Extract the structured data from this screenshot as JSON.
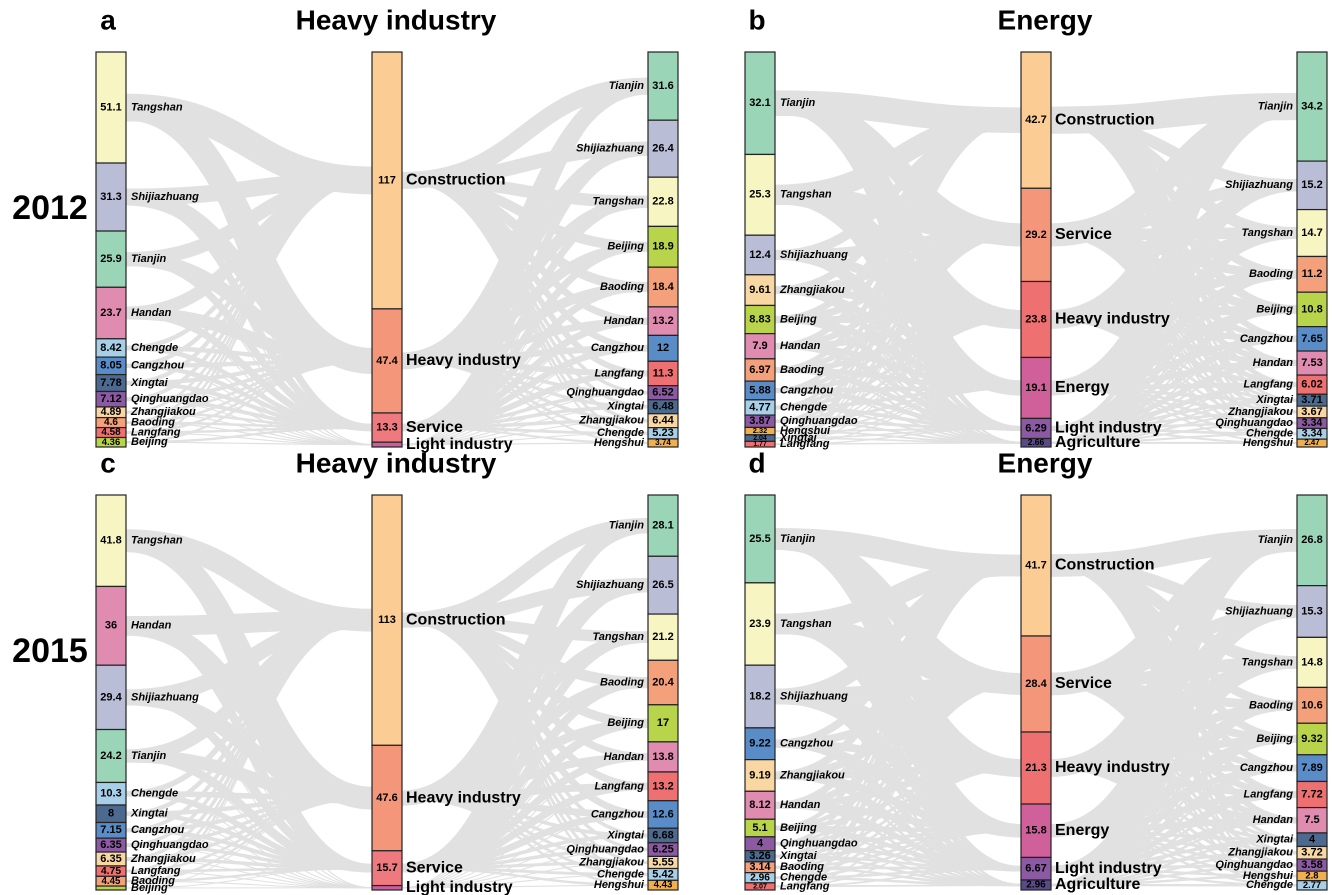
{
  "chart_data": [
    {
      "type": "sankey",
      "panel": "a",
      "title": "Heavy industry",
      "row_label": "2012",
      "left": [
        {
          "name": "Tangshan",
          "value": 51.1,
          "color": "#f7f6c2"
        },
        {
          "name": "Shijiazhuang",
          "value": 31.3,
          "color": "#babdd6"
        },
        {
          "name": "Tianjin",
          "value": 25.9,
          "color": "#9bd5b7"
        },
        {
          "name": "Handan",
          "value": 23.7,
          "color": "#df8cb0"
        },
        {
          "name": "Chengde",
          "value": 8.42,
          "color": "#a7cfe8"
        },
        {
          "name": "Cangzhou",
          "value": 8.05,
          "color": "#5a8cc8"
        },
        {
          "name": "Xingtai",
          "value": 7.78,
          "color": "#4c6a90"
        },
        {
          "name": "Qinghuangdao",
          "value": 7.12,
          "color": "#8b5aa2"
        },
        {
          "name": "Zhangjiakou",
          "value": 4.89,
          "color": "#f8d7a2"
        },
        {
          "name": "Baoding",
          "value": 4.6,
          "color": "#f4a07a"
        },
        {
          "name": "Langfang",
          "value": 4.58,
          "color": "#ee7070"
        },
        {
          "name": "Beijing",
          "value": 4.36,
          "color": "#b8d44a"
        }
      ],
      "middle": [
        {
          "name": "Construction",
          "value": 117,
          "color": "#fbcc94"
        },
        {
          "name": "Heavy industry",
          "value": 47.4,
          "color": "#f4967a"
        },
        {
          "name": "Service",
          "value": 13.3,
          "color": "#ee7a80"
        },
        {
          "name": "Light industry",
          "value": 2.2,
          "color": "#c8609e"
        }
      ],
      "right": [
        {
          "name": "Tianjin",
          "value": 31.6,
          "color": "#9bd5b7"
        },
        {
          "name": "Shijiazhuang",
          "value": 26.4,
          "color": "#babdd6"
        },
        {
          "name": "Tangshan",
          "value": 22.8,
          "color": "#f7f6c2"
        },
        {
          "name": "Beijing",
          "value": 18.9,
          "color": "#b8d44a"
        },
        {
          "name": "Baoding",
          "value": 18.4,
          "color": "#f4a07a"
        },
        {
          "name": "Handan",
          "value": 13.2,
          "color": "#df8cb0"
        },
        {
          "name": "Cangzhou",
          "value": 12,
          "color": "#5a8cc8"
        },
        {
          "name": "Langfang",
          "value": 11.3,
          "color": "#ee7070"
        },
        {
          "name": "Qinghuangdao",
          "value": 6.52,
          "color": "#8b5aa2"
        },
        {
          "name": "Xingtai",
          "value": 6.48,
          "color": "#4c6a90"
        },
        {
          "name": "Zhangjiakou",
          "value": 6.44,
          "color": "#f8d7a2"
        },
        {
          "name": "Chengde",
          "value": 5.23,
          "color": "#a7cfe8"
        },
        {
          "name": "Hengshui",
          "value": 3.74,
          "color": "#f0b050"
        }
      ]
    },
    {
      "type": "sankey",
      "panel": "b",
      "title": "Energy",
      "left": [
        {
          "name": "Tianjin",
          "value": 32.1,
          "color": "#9bd5b7"
        },
        {
          "name": "Tangshan",
          "value": 25.3,
          "color": "#f7f6c2"
        },
        {
          "name": "Shijiazhuang",
          "value": 12.4,
          "color": "#babdd6"
        },
        {
          "name": "Zhangjiakou",
          "value": 9.61,
          "color": "#f8d7a2"
        },
        {
          "name": "Beijing",
          "value": 8.83,
          "color": "#b8d44a"
        },
        {
          "name": "Handan",
          "value": 7.9,
          "color": "#df8cb0"
        },
        {
          "name": "Baoding",
          "value": 6.97,
          "color": "#f4a07a"
        },
        {
          "name": "Cangzhou",
          "value": 5.88,
          "color": "#5a8cc8"
        },
        {
          "name": "Chengde",
          "value": 4.77,
          "color": "#a7cfe8"
        },
        {
          "name": "Qinghuangdao",
          "value": 3.87,
          "color": "#8b5aa2"
        },
        {
          "name": "Hengshui",
          "value": 2.32,
          "color": "#f0b050"
        },
        {
          "name": "Xingtai",
          "value": 2.04,
          "color": "#4c6a90"
        },
        {
          "name": "Langfang",
          "value": 1.77,
          "color": "#ee7070"
        }
      ],
      "middle": [
        {
          "name": "Construction",
          "value": 42.7,
          "color": "#fbcc94"
        },
        {
          "name": "Service",
          "value": 29.2,
          "color": "#f4967a"
        },
        {
          "name": "Heavy industry",
          "value": 23.8,
          "color": "#ee7070"
        },
        {
          "name": "Energy",
          "value": 19.1,
          "color": "#d0609a"
        },
        {
          "name": "Light industry",
          "value": 6.29,
          "color": "#8b5aa2"
        },
        {
          "name": "Agriculture",
          "value": 2.66,
          "color": "#5a4a8a"
        }
      ],
      "right": [
        {
          "name": "Tianjin",
          "value": 34.2,
          "color": "#9bd5b7"
        },
        {
          "name": "Shijiazhuang",
          "value": 15.2,
          "color": "#babdd6"
        },
        {
          "name": "Tangshan",
          "value": 14.7,
          "color": "#f7f6c2"
        },
        {
          "name": "Baoding",
          "value": 11.2,
          "color": "#f4a07a"
        },
        {
          "name": "Beijing",
          "value": 10.8,
          "color": "#b8d44a"
        },
        {
          "name": "Cangzhou",
          "value": 7.65,
          "color": "#5a8cc8"
        },
        {
          "name": "Handan",
          "value": 7.53,
          "color": "#df8cb0"
        },
        {
          "name": "Langfang",
          "value": 6.02,
          "color": "#ee7070"
        },
        {
          "name": "Xingtai",
          "value": 3.71,
          "color": "#4c6a90"
        },
        {
          "name": "Zhangjiakou",
          "value": 3.67,
          "color": "#f8d7a2"
        },
        {
          "name": "Qinghuangdao",
          "value": 3.34,
          "color": "#8b5aa2"
        },
        {
          "name": "Chengde",
          "value": 3.34,
          "color": "#a7cfe8"
        },
        {
          "name": "Hengshui",
          "value": 2.47,
          "color": "#f0b050"
        }
      ]
    },
    {
      "type": "sankey",
      "panel": "c",
      "title": "Heavy industry",
      "row_label": "2015",
      "left": [
        {
          "name": "Tangshan",
          "value": 41.8,
          "color": "#f7f6c2"
        },
        {
          "name": "Handan",
          "value": 36,
          "color": "#df8cb0"
        },
        {
          "name": "Shijiazhuang",
          "value": 29.4,
          "color": "#babdd6"
        },
        {
          "name": "Tianjin",
          "value": 24.2,
          "color": "#9bd5b7"
        },
        {
          "name": "Chengde",
          "value": 10.3,
          "color": "#a7cfe8"
        },
        {
          "name": "Xingtai",
          "value": 8,
          "color": "#4c6a90"
        },
        {
          "name": "Cangzhou",
          "value": 7.15,
          "color": "#5a8cc8"
        },
        {
          "name": "Qinghuangdao",
          "value": 6.35,
          "color": "#8b5aa2"
        },
        {
          "name": "Zhangjiakou",
          "value": 6.35,
          "color": "#f8d7a2"
        },
        {
          "name": "Langfang",
          "value": 4.75,
          "color": "#ee7070"
        },
        {
          "name": "Baoding",
          "value": 4.45,
          "color": "#f4a07a"
        },
        {
          "name": "Beijing",
          "value": 1.8,
          "color": "#b8d44a"
        }
      ],
      "middle": [
        {
          "name": "Construction",
          "value": 113,
          "color": "#fbcc94"
        },
        {
          "name": "Heavy industry",
          "value": 47.6,
          "color": "#f4967a"
        },
        {
          "name": "Service",
          "value": 15.7,
          "color": "#ee7a80"
        },
        {
          "name": "Light industry",
          "value": 2,
          "color": "#c8609e"
        }
      ],
      "right": [
        {
          "name": "Tianjin",
          "value": 28.1,
          "color": "#9bd5b7"
        },
        {
          "name": "Shijiazhuang",
          "value": 26.5,
          "color": "#babdd6"
        },
        {
          "name": "Tangshan",
          "value": 21.2,
          "color": "#f7f6c2"
        },
        {
          "name": "Baoding",
          "value": 20.4,
          "color": "#f4a07a"
        },
        {
          "name": "Beijing",
          "value": 17,
          "color": "#b8d44a"
        },
        {
          "name": "Handan",
          "value": 13.8,
          "color": "#df8cb0"
        },
        {
          "name": "Langfang",
          "value": 13.2,
          "color": "#ee7070"
        },
        {
          "name": "Cangzhou",
          "value": 12.6,
          "color": "#5a8cc8"
        },
        {
          "name": "Xingtai",
          "value": 6.68,
          "color": "#4c6a90"
        },
        {
          "name": "Qinghuangdao",
          "value": 6.25,
          "color": "#8b5aa2"
        },
        {
          "name": "Zhangjiakou",
          "value": 5.55,
          "color": "#f8d7a2"
        },
        {
          "name": "Chengde",
          "value": 5.42,
          "color": "#a7cfe8"
        },
        {
          "name": "Hengshui",
          "value": 4.43,
          "color": "#f0b050"
        }
      ]
    },
    {
      "type": "sankey",
      "panel": "d",
      "title": "Energy",
      "left": [
        {
          "name": "Tianjin",
          "value": 25.5,
          "color": "#9bd5b7"
        },
        {
          "name": "Tangshan",
          "value": 23.9,
          "color": "#f7f6c2"
        },
        {
          "name": "Shijiazhuang",
          "value": 18.2,
          "color": "#babdd6"
        },
        {
          "name": "Cangzhou",
          "value": 9.22,
          "color": "#5a8cc8"
        },
        {
          "name": "Zhangjiakou",
          "value": 9.19,
          "color": "#f8d7a2"
        },
        {
          "name": "Handan",
          "value": 8.12,
          "color": "#df8cb0"
        },
        {
          "name": "Beijing",
          "value": 5.1,
          "color": "#b8d44a"
        },
        {
          "name": "Qinghuangdao",
          "value": 4,
          "color": "#8b5aa2"
        },
        {
          "name": "Xingtai",
          "value": 3.26,
          "color": "#4c6a90"
        },
        {
          "name": "Baoding",
          "value": 3.14,
          "color": "#f4a07a"
        },
        {
          "name": "Chengde",
          "value": 2.96,
          "color": "#a7cfe8"
        },
        {
          "name": "Langfang",
          "value": 2.07,
          "color": "#ee7070"
        }
      ],
      "middle": [
        {
          "name": "Construction",
          "value": 41.7,
          "color": "#fbcc94"
        },
        {
          "name": "Service",
          "value": 28.4,
          "color": "#f4967a"
        },
        {
          "name": "Heavy industry",
          "value": 21.3,
          "color": "#ee7070"
        },
        {
          "name": "Energy",
          "value": 15.8,
          "color": "#d0609a"
        },
        {
          "name": "Light industry",
          "value": 6.67,
          "color": "#8b5aa2"
        },
        {
          "name": "Agriculture",
          "value": 2.96,
          "color": "#5a4a8a"
        }
      ],
      "right": [
        {
          "name": "Tianjin",
          "value": 26.8,
          "color": "#9bd5b7"
        },
        {
          "name": "Shijiazhuang",
          "value": 15.3,
          "color": "#babdd6"
        },
        {
          "name": "Tangshan",
          "value": 14.8,
          "color": "#f7f6c2"
        },
        {
          "name": "Baoding",
          "value": 10.6,
          "color": "#f4a07a"
        },
        {
          "name": "Beijing",
          "value": 9.32,
          "color": "#b8d44a"
        },
        {
          "name": "Cangzhou",
          "value": 7.89,
          "color": "#5a8cc8"
        },
        {
          "name": "Langfang",
          "value": 7.72,
          "color": "#ee7070"
        },
        {
          "name": "Handan",
          "value": 7.5,
          "color": "#df8cb0"
        },
        {
          "name": "Xingtai",
          "value": 4,
          "color": "#4c6a90"
        },
        {
          "name": "Zhangjiakou",
          "value": 3.72,
          "color": "#f8d7a2"
        },
        {
          "name": "Qinghuangdao",
          "value": 3.58,
          "color": "#8b5aa2"
        },
        {
          "name": "Hengshui",
          "value": 2.8,
          "color": "#f0b050"
        },
        {
          "name": "Chengde",
          "value": 2.77,
          "color": "#a7cfe8"
        }
      ]
    }
  ]
}
